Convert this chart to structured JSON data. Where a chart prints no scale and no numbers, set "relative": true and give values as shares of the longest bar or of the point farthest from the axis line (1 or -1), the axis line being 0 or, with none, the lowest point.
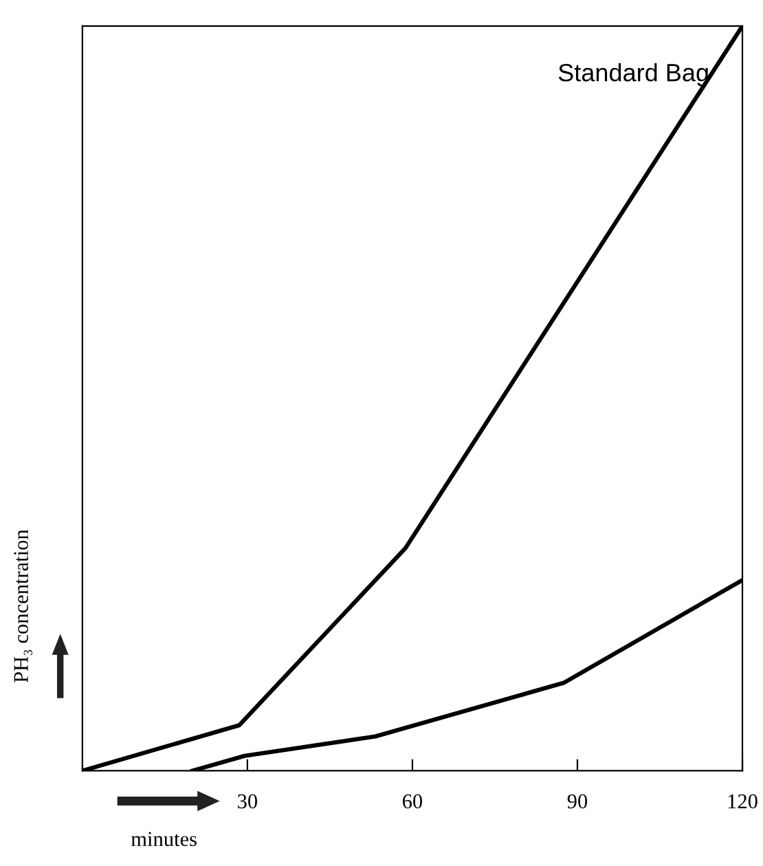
{
  "chart_data": {
    "type": "line",
    "relative": true,
    "xlabel": "minutes",
    "ylabel": "PH₃ concentration",
    "xlim": [
      0,
      120
    ],
    "xticks": [
      30,
      60,
      90,
      120
    ],
    "grid": false,
    "legend": false,
    "marker": "none",
    "line_style": "solid",
    "series": [
      {
        "name": "Standard Bag",
        "color": "#000000",
        "x": [
          0,
          28.5,
          58.75,
          120
        ],
        "values": [
          0,
          0.061,
          0.299,
          1.0
        ]
      },
      {
        "color": "#000000",
        "x": [
          20,
          29.5,
          53.25,
          87.5,
          120
        ],
        "values": [
          0,
          0.02,
          0.046,
          0.118,
          0.256
        ]
      }
    ]
  }
}
